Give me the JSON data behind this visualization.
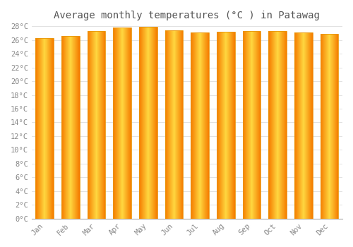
{
  "title": "Average monthly temperatures (°C ) in Patawag",
  "months": [
    "Jan",
    "Feb",
    "Mar",
    "Apr",
    "May",
    "Jun",
    "Jul",
    "Aug",
    "Sep",
    "Oct",
    "Nov",
    "Dec"
  ],
  "values": [
    26.3,
    26.6,
    27.3,
    27.8,
    27.9,
    27.4,
    27.1,
    27.2,
    27.3,
    27.3,
    27.1,
    26.9
  ],
  "ylim": [
    0,
    28
  ],
  "ytick_step": 2,
  "bar_color_center": "#FFC107",
  "bar_color_edge": "#F57C00",
  "background_color": "#FFFFFF",
  "grid_color": "#DDDDDD",
  "title_fontsize": 10,
  "tick_fontsize": 7.5,
  "title_color": "#555555",
  "tick_color": "#888888",
  "font_family": "monospace"
}
